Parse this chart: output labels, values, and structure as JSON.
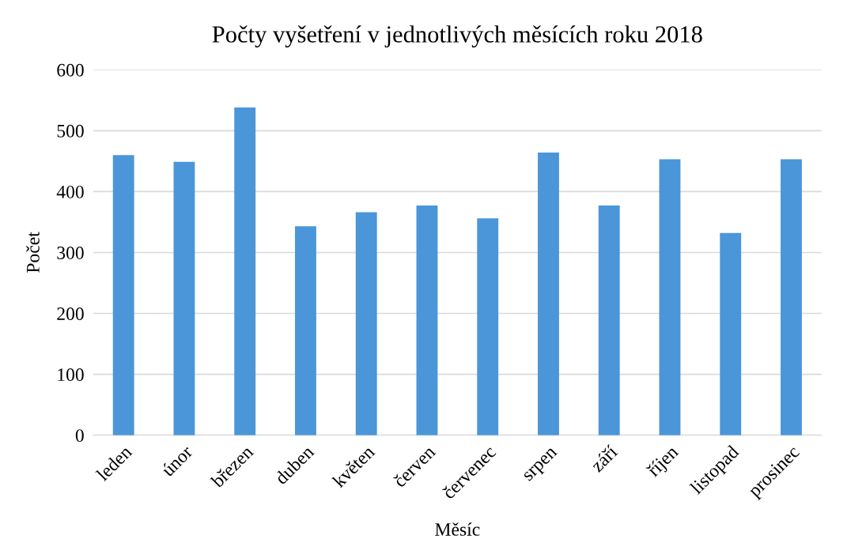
{
  "chart_data": {
    "type": "bar",
    "title": "Počty vyšetření v jednotlivých měsících roku 2018",
    "xlabel": "Měsíc",
    "ylabel": "Počet",
    "categories": [
      "leden",
      "únor",
      "březen",
      "duben",
      "květen",
      "červen",
      "červenec",
      "srpen",
      "září",
      "říjen",
      "listopad",
      "prosinec"
    ],
    "values": [
      460,
      449,
      538,
      343,
      366,
      377,
      356,
      464,
      377,
      453,
      332,
      453
    ],
    "color": "#4a96d9",
    "ylim": [
      0,
      600
    ],
    "yticks": [
      0,
      100,
      200,
      300,
      400,
      500,
      600
    ],
    "grid": "y"
  }
}
